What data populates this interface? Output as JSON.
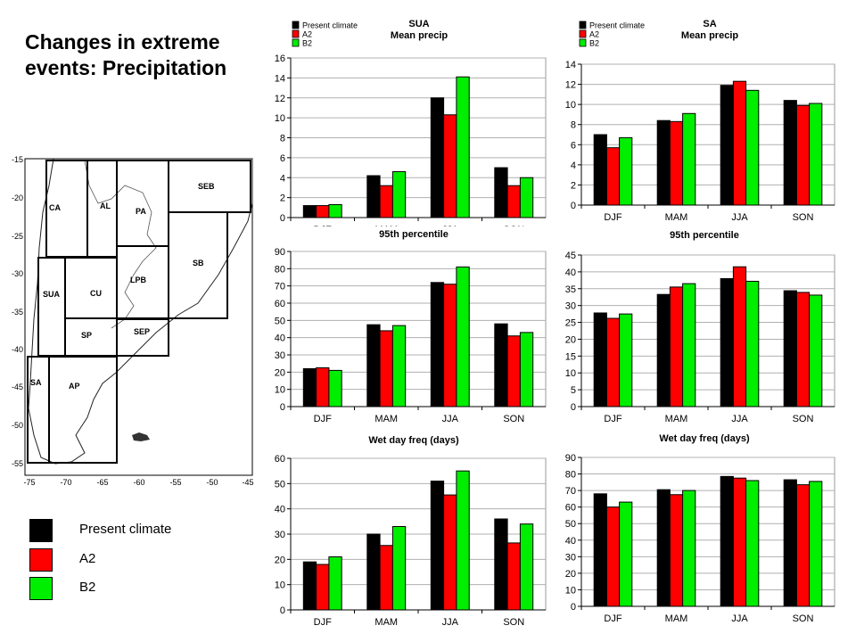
{
  "title": "Changes in extreme events: Precipitation",
  "colors": {
    "present": "#000000",
    "a2": "#ff0000",
    "b2": "#00ee00"
  },
  "legend": {
    "items": [
      {
        "label": "Present climate",
        "color": "#000000"
      },
      {
        "label": "A2",
        "color": "#ff0000"
      },
      {
        "label": "B2",
        "color": "#00ee00"
      }
    ]
  },
  "map": {
    "lat_ticks": [
      "-15",
      "-20",
      "-25",
      "-30",
      "-35",
      "-40",
      "-45",
      "-50",
      "-55"
    ],
    "lon_ticks": [
      "-75",
      "-70",
      "-65",
      "-60",
      "-55",
      "-50",
      "-45"
    ],
    "regions": [
      "CA",
      "AL",
      "PA",
      "SEB",
      "SB",
      "SUA",
      "CU",
      "LPB",
      "SP",
      "SEP",
      "SA",
      "AP"
    ]
  },
  "chart_data": [
    {
      "id": "sua-mean",
      "type": "bar",
      "legend_labels": [
        "Present climate",
        "A2",
        "B2"
      ],
      "region_title": "SUA",
      "subtitle": "Mean precip",
      "categories": [
        "DJF",
        "MAM",
        "JJA",
        "SON"
      ],
      "ylim": [
        0,
        16
      ],
      "ystep": 2,
      "series": [
        {
          "name": "Present climate",
          "values": [
            1.2,
            4.2,
            12.0,
            5.0
          ]
        },
        {
          "name": "A2",
          "values": [
            1.2,
            3.2,
            10.3,
            3.2
          ]
        },
        {
          "name": "B2",
          "values": [
            1.3,
            4.6,
            14.1,
            4.0
          ]
        }
      ]
    },
    {
      "id": "sa-mean",
      "type": "bar",
      "legend_labels": [
        "Present climate",
        "A2",
        "B2"
      ],
      "region_title": "SA",
      "subtitle": "Mean precip",
      "categories": [
        "DJF",
        "MAM",
        "JJA",
        "SON"
      ],
      "ylim": [
        0,
        14
      ],
      "ystep": 2,
      "series": [
        {
          "name": "Present climate",
          "values": [
            7.0,
            8.4,
            11.9,
            10.4
          ]
        },
        {
          "name": "A2",
          "values": [
            5.7,
            8.3,
            12.3,
            9.9
          ]
        },
        {
          "name": "B2",
          "values": [
            6.7,
            9.1,
            11.4,
            10.1
          ]
        }
      ]
    },
    {
      "id": "sua-p95",
      "type": "bar",
      "region_title": "95th percentile",
      "categories": [
        "DJF",
        "MAM",
        "JJA",
        "SON"
      ],
      "ylim": [
        0,
        90
      ],
      "ystep": 10,
      "series": [
        {
          "name": "Present climate",
          "values": [
            22,
            47.5,
            72,
            48
          ]
        },
        {
          "name": "A2",
          "values": [
            22.5,
            44,
            71,
            41
          ]
        },
        {
          "name": "B2",
          "values": [
            21,
            47,
            81,
            43
          ]
        }
      ]
    },
    {
      "id": "sa-p95",
      "type": "bar",
      "region_title": "95th percentile",
      "categories": [
        "DJF",
        "MAM",
        "JJA",
        "SON"
      ],
      "ylim": [
        0,
        45
      ],
      "ystep": 5,
      "series": [
        {
          "name": "Present climate",
          "values": [
            27.8,
            33.3,
            38.0,
            34.4
          ]
        },
        {
          "name": "A2",
          "values": [
            26.2,
            35.5,
            41.5,
            33.9
          ]
        },
        {
          "name": "B2",
          "values": [
            27.5,
            36.5,
            37.2,
            33.1
          ]
        }
      ]
    },
    {
      "id": "sua-wet",
      "type": "bar",
      "region_title": "Wet day freq (days)",
      "categories": [
        "DJF",
        "MAM",
        "JJA",
        "SON"
      ],
      "ylim": [
        0,
        60
      ],
      "ystep": 10,
      "series": [
        {
          "name": "Present climate",
          "values": [
            19,
            30,
            51,
            36
          ]
        },
        {
          "name": "A2",
          "values": [
            18,
            25.5,
            45.5,
            26.5
          ]
        },
        {
          "name": "B2",
          "values": [
            21,
            33,
            55,
            34
          ]
        }
      ]
    },
    {
      "id": "sa-wet",
      "type": "bar",
      "region_title": "Wet day freq (days)",
      "categories": [
        "DJF",
        "MAM",
        "JJA",
        "SON"
      ],
      "ylim": [
        0,
        90
      ],
      "ystep": 10,
      "series": [
        {
          "name": "Present climate",
          "values": [
            68,
            70.5,
            78.5,
            76.5
          ]
        },
        {
          "name": "A2",
          "values": [
            60,
            67.5,
            77.5,
            73.5
          ]
        },
        {
          "name": "B2",
          "values": [
            63,
            70,
            76,
            75.5
          ]
        }
      ]
    }
  ]
}
